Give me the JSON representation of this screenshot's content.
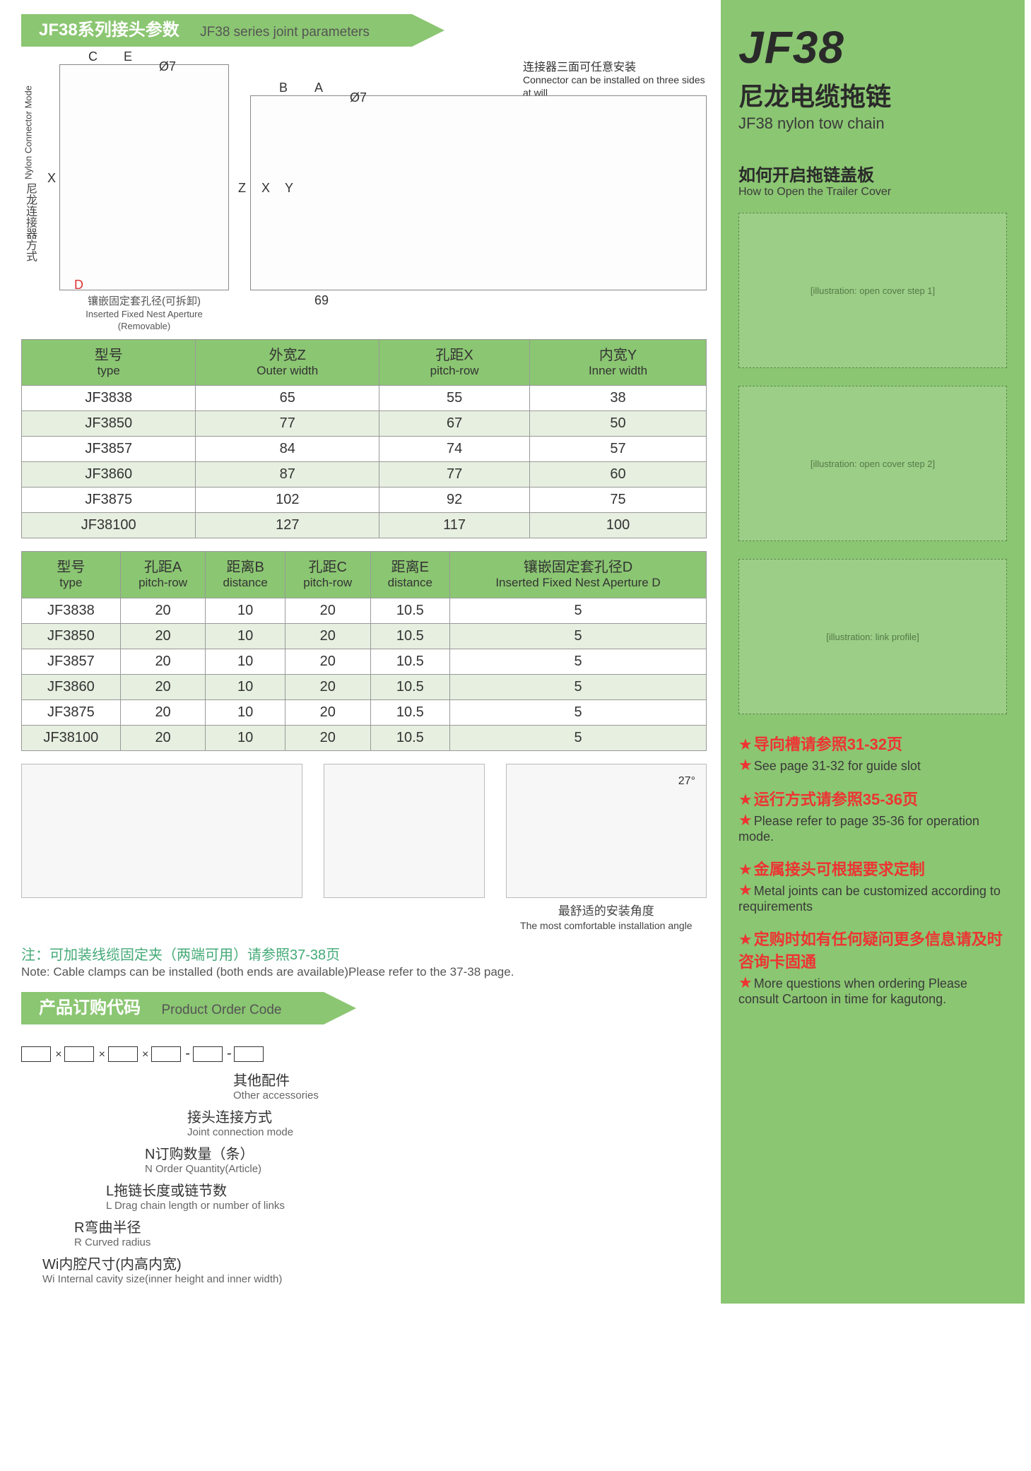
{
  "banner1": {
    "cn": "JF38系列接头参数",
    "en": "JF38 series joint parameters"
  },
  "banner2": {
    "cn": "产品订购代码",
    "en": "Product Order Code"
  },
  "diag": {
    "left_vlabel_cn": "尼龙连接器方式",
    "left_vlabel_en": "Nylon Connector Mode",
    "top_note_cn": "连接器三面可任意安装",
    "top_note_en": "Connector can be installed on three sides at will",
    "label_C": "C",
    "label_E": "E",
    "label_phi7a": "Ø7",
    "label_B": "B",
    "label_A": "A",
    "label_phi7b": "Ø7",
    "label_X": "X",
    "label_Z": "Z",
    "label_Y": "Y",
    "label_X2": "X",
    "label_D": "D",
    "dim_69": "69",
    "caption_left_cn": "镶嵌固定套孔径(可拆卸)",
    "caption_left_en": "Inserted Fixed Nest Aperture (Removable)"
  },
  "table1": {
    "headers": [
      {
        "cn": "型号",
        "en": "type"
      },
      {
        "cn": "外宽Z",
        "en": "Outer width"
      },
      {
        "cn": "孔距X",
        "en": "pitch-row"
      },
      {
        "cn": "内宽Y",
        "en": "Inner width"
      }
    ],
    "rows": [
      [
        "JF3838",
        "65",
        "55",
        "38"
      ],
      [
        "JF3850",
        "77",
        "67",
        "50"
      ],
      [
        "JF3857",
        "84",
        "74",
        "57"
      ],
      [
        "JF3860",
        "87",
        "77",
        "60"
      ],
      [
        "JF3875",
        "102",
        "92",
        "75"
      ],
      [
        "JF38100",
        "127",
        "117",
        "100"
      ]
    ]
  },
  "table2": {
    "headers": [
      {
        "cn": "型号",
        "en": "type"
      },
      {
        "cn": "孔距A",
        "en": "pitch-row"
      },
      {
        "cn": "距离B",
        "en": "distance"
      },
      {
        "cn": "孔距C",
        "en": "pitch-row"
      },
      {
        "cn": "距离E",
        "en": "distance"
      },
      {
        "cn": "镶嵌固定套孔径D",
        "en": "Inserted Fixed Nest Aperture D"
      }
    ],
    "rows": [
      [
        "JF3838",
        "20",
        "10",
        "20",
        "10.5",
        "5"
      ],
      [
        "JF3850",
        "20",
        "10",
        "20",
        "10.5",
        "5"
      ],
      [
        "JF3857",
        "20",
        "10",
        "20",
        "10.5",
        "5"
      ],
      [
        "JF3860",
        "20",
        "10",
        "20",
        "10.5",
        "5"
      ],
      [
        "JF3875",
        "20",
        "10",
        "20",
        "10.5",
        "5"
      ],
      [
        "JF38100",
        "20",
        "10",
        "20",
        "10.5",
        "5"
      ]
    ]
  },
  "prod": {
    "angle": "27°",
    "caption_angle_cn": "最舒适的安装角度",
    "caption_angle_en": "The most comfortable installation angle"
  },
  "note": {
    "cn": "注：可加装线缆固定夹（两端可用）请参照37-38页",
    "en": "Note: Cable clamps can be installed (both ends are available)Please refer to the 37-38 page."
  },
  "orderTree": [
    {
      "cn": "其他配件",
      "en": "Other accessories"
    },
    {
      "cn": "接头连接方式",
      "en": "Joint connection mode"
    },
    {
      "cn": "N订购数量（条）",
      "en": "N Order Quantity(Article)"
    },
    {
      "cn": "L拖链长度或链节数",
      "en": "L Drag chain length or number of links"
    },
    {
      "cn": "R弯曲半径",
      "en": "R Curved radius"
    },
    {
      "cn": "Wi内腔尺寸(内高内宽)",
      "en": "Wi Internal cavity size(inner height and inner width)"
    }
  ],
  "sidebar": {
    "title": "JF38",
    "sub_cn": "尼龙电缆拖链",
    "sub_en": "JF38 nylon tow chain",
    "sec_cn": "如何开启拖链盖板",
    "sec_en": "How to Open the Trailer Cover",
    "illus1": "[illustration: open cover step 1]",
    "illus2": "[illustration: open cover step 2]",
    "illus3": "[illustration: link profile]",
    "notes": [
      {
        "hl": "导向槽请参照31-32页",
        "en": "See page 31-32 for guide slot"
      },
      {
        "hl": "运行方式请参照35-36页",
        "en": "Please refer to page 35-36 for operation mode."
      },
      {
        "hl": "金属接头可根据要求定制",
        "en": "Metal joints can be customized according to requirements"
      },
      {
        "hl": "定购时如有任何疑问更多信息请及时咨询卡固通",
        "en": "More questions when ordering Please consult Cartoon in time for kagutong."
      }
    ]
  },
  "colors": {
    "accent": "#8bc672",
    "star": "#e33",
    "text": "#333"
  }
}
